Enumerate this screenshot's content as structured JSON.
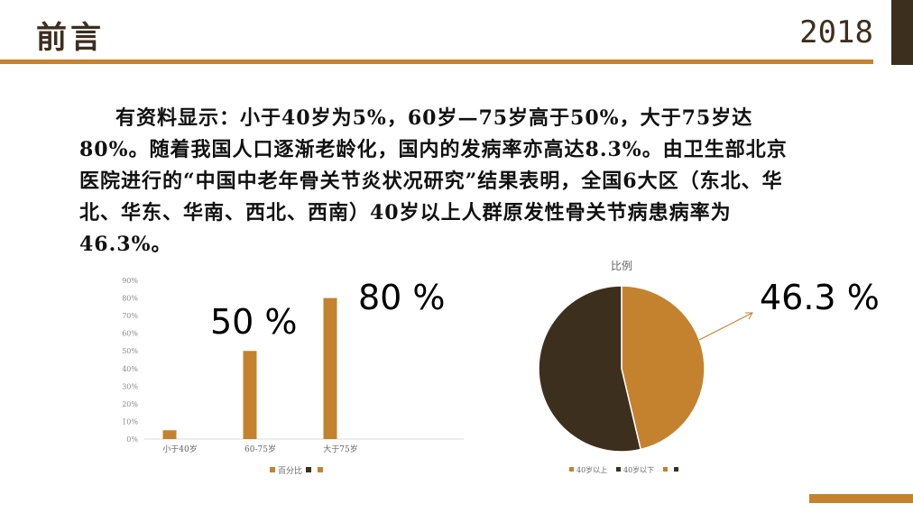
{
  "header": {
    "title": "前言",
    "year": "2018"
  },
  "body_text": "有资料显示：小于40岁为5%，60岁—75岁高于50%，大于75岁达80%。随着我国人口逐渐老龄化，国内的发病率亦高达8.3%。由卫生部北京医院进行的“中国中老年骨关节炎状况研究”结果表明，全国6大区（东北、华北、华东、华南、西北、西南）40岁以上人群原发性骨关节病患病率为46.3%。",
  "callouts": {
    "bar_50": "50 %",
    "bar_80": "80 %",
    "pie": "46.3 %"
  },
  "colors": {
    "accent": "#c4822f",
    "dark": "#3d2f1e"
  },
  "chart_data": [
    {
      "type": "bar",
      "categories": [
        "小于40岁",
        "60-75岁",
        "大于75岁"
      ],
      "series": [
        {
          "name": "百分比",
          "values": [
            5,
            50,
            80
          ],
          "color": "#c4822f"
        }
      ],
      "legend": [
        "百分比",
        "",
        ""
      ],
      "legend_position": "bottom",
      "yticks": [
        "0%",
        "10%",
        "20%",
        "30%",
        "40%",
        "50%",
        "60%",
        "70%",
        "80%",
        "90%"
      ],
      "ylim": [
        0,
        90
      ],
      "grid": false
    },
    {
      "type": "pie",
      "title": "比例",
      "labels": [
        "40岁以上",
        "40岁以下"
      ],
      "values": [
        46.3,
        53.7
      ],
      "colors": [
        "#c4822f",
        "#3d2f1e"
      ],
      "legend": [
        "40岁以上",
        "40岁以下",
        "",
        ""
      ],
      "legend_position": "bottom"
    }
  ]
}
